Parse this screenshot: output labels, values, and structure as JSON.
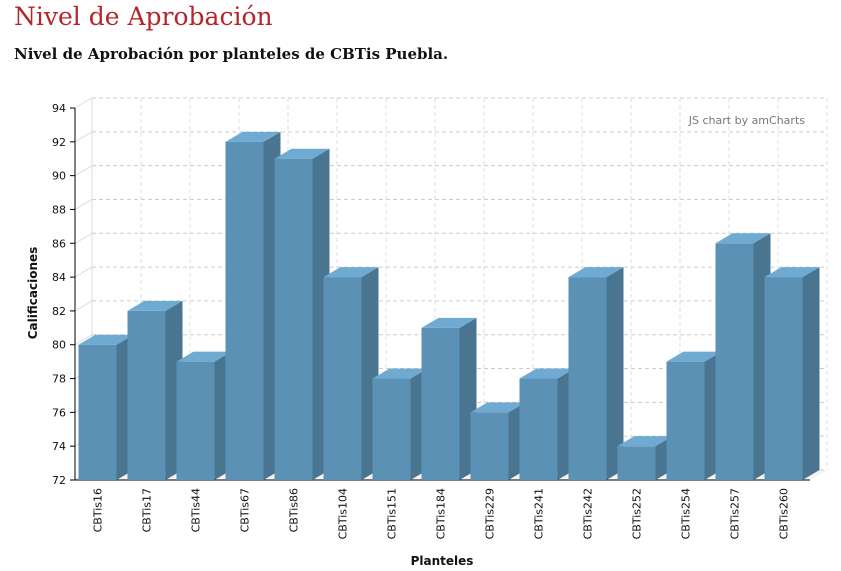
{
  "page": {
    "title": "Nivel de Aprobación",
    "subtitle": "Nivel de Aprobación por planteles de CBTis Puebla."
  },
  "chart_data": {
    "type": "bar",
    "style": "3d-column",
    "categories": [
      "CBTis16",
      "CBTis17",
      "CBTis44",
      "CBTis67",
      "CBTis86",
      "CBTis104",
      "CBTis151",
      "CBTis184",
      "CBTis229",
      "CBTis241",
      "CBTis242",
      "CBTis252",
      "CBTis254",
      "CBTis257",
      "CBTis260"
    ],
    "values": [
      80,
      82,
      79,
      92,
      91,
      84,
      78,
      81,
      76,
      78,
      84,
      74,
      79,
      86,
      84
    ],
    "xlabel": "Planteles",
    "ylabel": "Calificaciones",
    "ylim": [
      72,
      94
    ],
    "yticks": [
      72,
      74,
      76,
      78,
      80,
      82,
      84,
      86,
      88,
      90,
      92,
      94
    ],
    "grid": true,
    "credit": "JS chart by amCharts",
    "colors": {
      "front": "#5b91b5",
      "top": "#6faad2",
      "side": "#4a7590"
    }
  }
}
